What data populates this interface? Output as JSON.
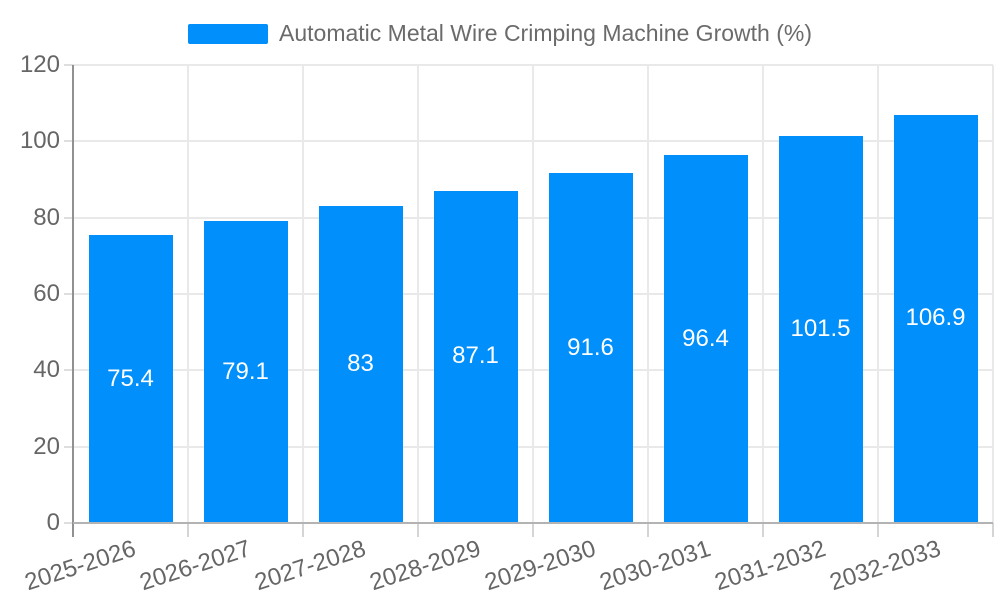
{
  "chart_data": {
    "type": "bar",
    "title": "Automatic Metal Wire Crimping Machine Growth (%)",
    "categories": [
      "2025-2026",
      "2026-2027",
      "2027-2028",
      "2028-2029",
      "2029-2030",
      "2030-2031",
      "2031-2032",
      "2032-2033"
    ],
    "values": [
      75.4,
      79.1,
      83,
      87.1,
      91.6,
      96.4,
      101.5,
      106.9
    ],
    "value_labels": [
      "75.4",
      "79.1",
      "83",
      "87.1",
      "91.6",
      "96.4",
      "101.5",
      "106.9"
    ],
    "xlabel": "",
    "ylabel": "",
    "ylim": [
      0,
      120
    ],
    "yticks": [
      0,
      20,
      40,
      60,
      80,
      100,
      120
    ],
    "grid": "on",
    "legend_position": "top",
    "bar_color": "#008FFB",
    "value_label_color": "#ffffff",
    "axis_label_color": "#666666",
    "legend_text_color": "#6b6b6b"
  }
}
